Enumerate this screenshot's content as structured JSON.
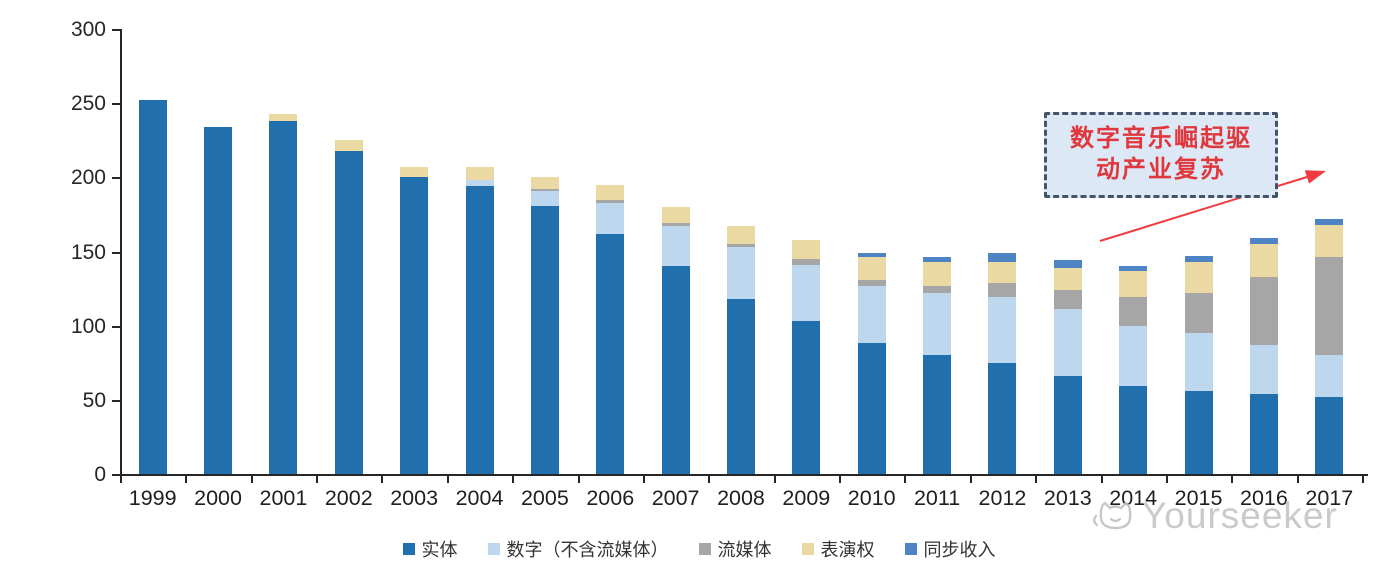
{
  "chart_data": {
    "type": "bar",
    "stacked": true,
    "title": "",
    "xlabel": "",
    "ylabel": "",
    "ylim": [
      0,
      300
    ],
    "y_ticks": [
      0,
      50,
      100,
      150,
      200,
      250,
      300
    ],
    "grid": false,
    "legend_position": "bottom",
    "categories": [
      "1999",
      "2000",
      "2001",
      "2002",
      "2003",
      "2004",
      "2005",
      "2006",
      "2007",
      "2008",
      "2009",
      "2010",
      "2011",
      "2012",
      "2013",
      "2014",
      "2015",
      "2016",
      "2017"
    ],
    "series": [
      {
        "key": "physical",
        "name": "实体",
        "color": "#2170AD",
        "values": [
          252,
          234,
          238,
          218,
          200,
          194,
          181,
          162,
          140,
          118,
          103,
          88,
          80,
          75,
          66,
          59,
          56,
          54,
          52
        ]
      },
      {
        "key": "digital-ex-streaming",
        "name": "数字（不含流媒体）",
        "color": "#BDD7EE",
        "values": [
          0,
          0,
          0,
          0,
          0,
          4,
          10,
          21,
          27,
          35,
          38,
          39,
          42,
          44,
          45,
          41,
          39,
          33,
          28
        ]
      },
      {
        "key": "streaming",
        "name": "流媒体",
        "color": "#A6A6A6",
        "values": [
          0,
          0,
          0,
          0,
          0,
          0,
          1,
          2,
          2,
          2,
          4,
          4,
          5,
          10,
          13,
          19,
          27,
          46,
          66
        ]
      },
      {
        "key": "performance-rights",
        "name": "表演权",
        "color": "#EAD9A2",
        "values": [
          0,
          0,
          5,
          7,
          7,
          9,
          8,
          10,
          11,
          12,
          13,
          15,
          16,
          14,
          15,
          18,
          21,
          22,
          22
        ]
      },
      {
        "key": "sync-revenue",
        "name": "同步收入",
        "color": "#4E84C4",
        "values": [
          0,
          0,
          0,
          0,
          0,
          0,
          0,
          0,
          0,
          0,
          0,
          3,
          3,
          6,
          5,
          3,
          4,
          4,
          4
        ]
      }
    ]
  },
  "annotation": {
    "line1": "数字音乐崛起驱",
    "line2": "动产业复苏",
    "text_color": "#E0373C",
    "box_fill": "#DCE8F6",
    "border_color": "#44546A",
    "arrow_color": "#F23B40"
  },
  "watermark": {
    "text": "Yourseeker",
    "icon": "cat-logo",
    "color": "#C6C6C6"
  }
}
